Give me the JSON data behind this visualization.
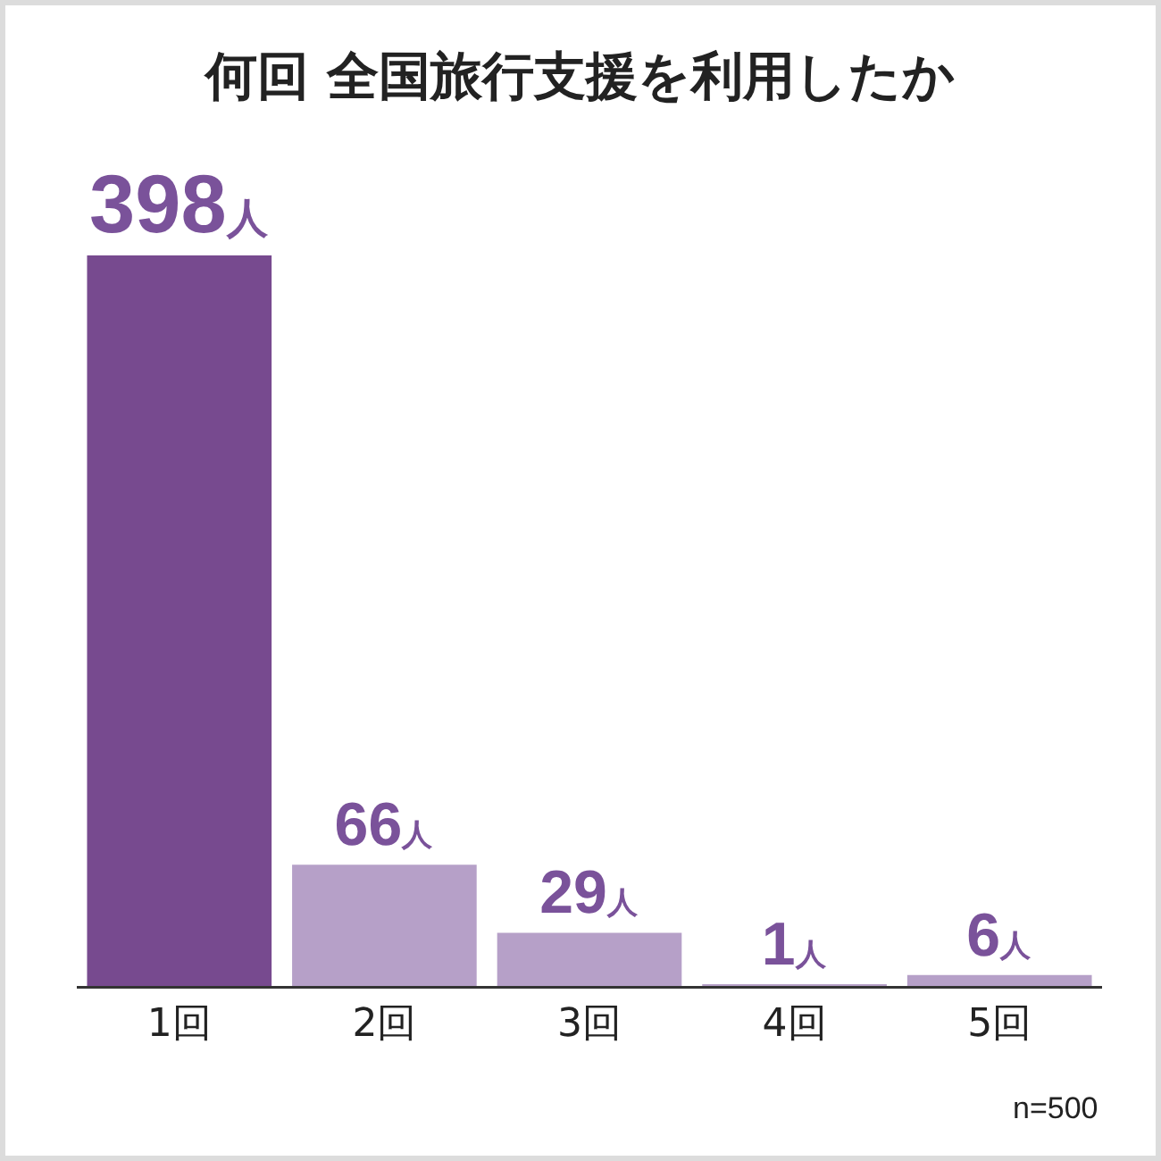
{
  "chart_data": {
    "type": "bar",
    "title": "何回 全国旅行支援を利用したか",
    "categories": [
      "1回",
      "2回",
      "3回",
      "4回",
      "5回"
    ],
    "values": [
      398,
      66,
      29,
      1,
      6
    ],
    "colors": [
      "#774a8f",
      "#b6a0c8",
      "#b6a0c8",
      "#b6a0c8",
      "#b6a0c8"
    ],
    "value_labels": [
      "398人",
      "66人",
      "29人",
      "1人",
      "6人"
    ],
    "annotations": [
      "n=500"
    ]
  }
}
